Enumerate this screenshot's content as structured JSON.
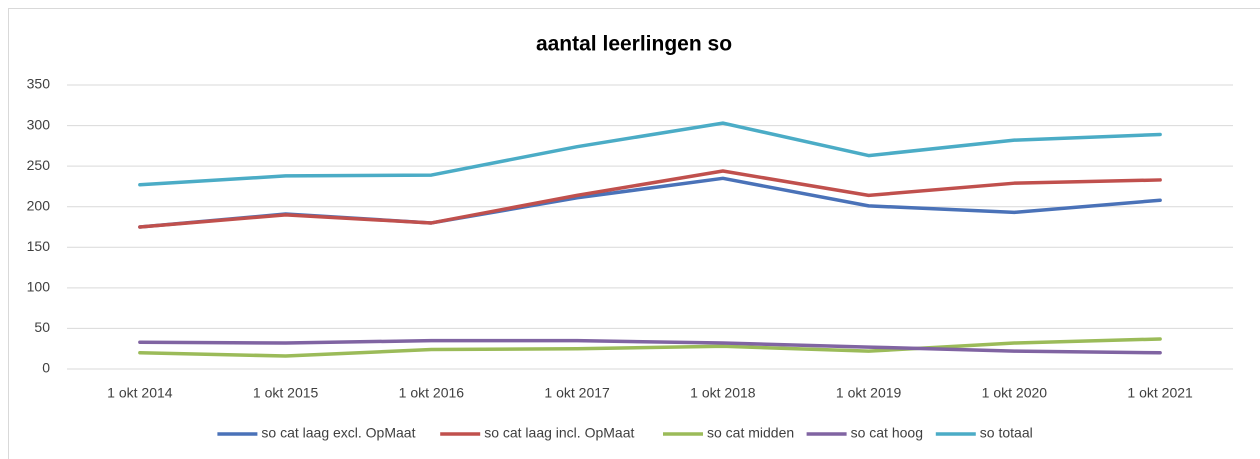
{
  "chart_data": {
    "type": "line",
    "title": "aantal leerlingen so",
    "categories": [
      "1 okt 2014",
      "1 okt 2015",
      "1 okt 2016",
      "1 okt 2017",
      "1 okt 2018",
      "1 okt 2019",
      "1 okt 2020",
      "1 okt 2021"
    ],
    "series": [
      {
        "name": "so cat laag excl. OpMaat",
        "color": "#4a72b8",
        "values": [
          175,
          191,
          180,
          211,
          235,
          201,
          193,
          208
        ]
      },
      {
        "name": "so cat laag incl. OpMaat",
        "color": "#c0504d",
        "values": [
          175,
          190,
          180,
          214,
          244,
          214,
          229,
          233
        ]
      },
      {
        "name": "so cat midden",
        "color": "#9bbb59",
        "values": [
          20,
          16,
          24,
          25,
          28,
          22,
          32,
          37
        ]
      },
      {
        "name": "so cat hoog",
        "color": "#8064a2",
        "values": [
          33,
          32,
          35,
          35,
          32,
          27,
          22,
          20
        ]
      },
      {
        "name": "so totaal",
        "color": "#4bacc6",
        "values": [
          227,
          238,
          239,
          274,
          303,
          263,
          282,
          289
        ]
      }
    ],
    "ylim": [
      0,
      350
    ],
    "yticks": [
      0,
      50,
      100,
      150,
      200,
      250,
      300,
      350
    ],
    "grid": true,
    "legend": "bottom"
  }
}
